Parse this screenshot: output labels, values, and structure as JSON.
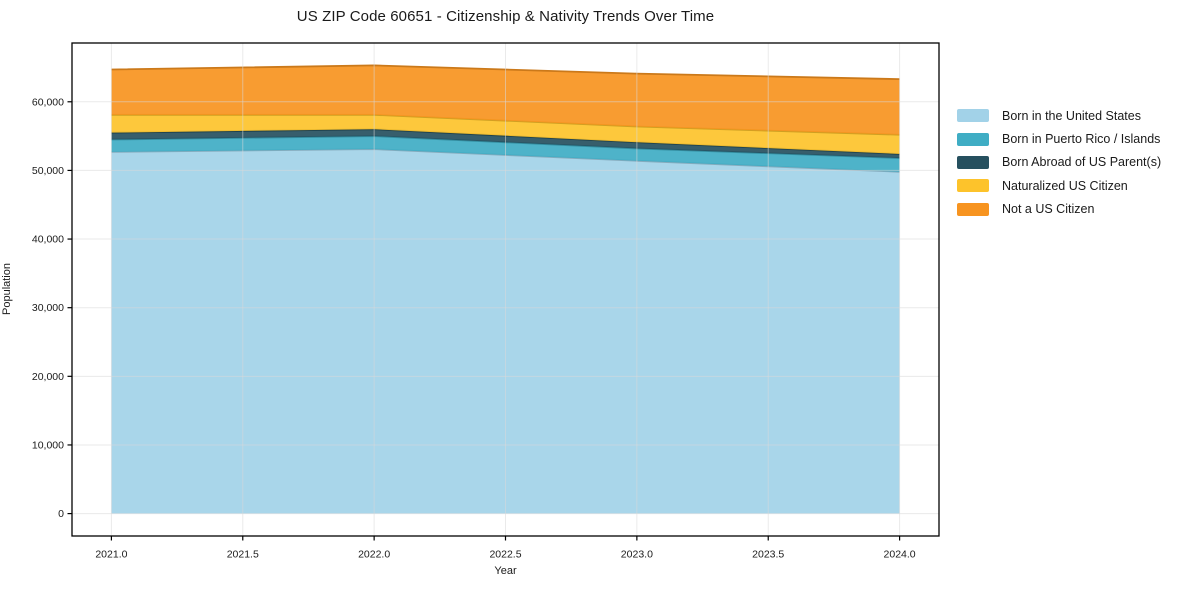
{
  "chart_data": {
    "type": "area",
    "stacked": true,
    "title": "US ZIP Code 60651 - Citizenship & Nativity Trends Over Time",
    "xlabel": "Year",
    "ylabel": "Population",
    "x": [
      2021,
      2022,
      2023,
      2024
    ],
    "series": [
      {
        "name": "Born in the United States",
        "color": "#a2d2e8",
        "values": [
          52700,
          53100,
          51400,
          49800
        ]
      },
      {
        "name": "Born in Puerto Rico / Islands",
        "color": "#3fadc4",
        "values": [
          1800,
          1900,
          1800,
          2000
        ]
      },
      {
        "name": "Born Abroad of US Parent(s)",
        "color": "#26505f",
        "values": [
          1000,
          1000,
          900,
          600
        ]
      },
      {
        "name": "Naturalized US Citizen",
        "color": "#fdc32b",
        "values": [
          2600,
          2100,
          2300,
          2800
        ]
      },
      {
        "name": "Not a US Citizen",
        "color": "#f79420",
        "values": [
          6600,
          7200,
          7700,
          8100
        ]
      }
    ],
    "totals": [
      64700,
      65300,
      64100,
      63300
    ],
    "x_ticks": [
      {
        "v": 2021.0,
        "label": "2021.0"
      },
      {
        "v": 2021.5,
        "label": "2021.5"
      },
      {
        "v": 2022.0,
        "label": "2022.0"
      },
      {
        "v": 2022.5,
        "label": "2022.5"
      },
      {
        "v": 2023.0,
        "label": "2023.0"
      },
      {
        "v": 2023.5,
        "label": "2023.5"
      },
      {
        "v": 2024.0,
        "label": "2024.0"
      }
    ],
    "y_ticks": [
      {
        "v": 0,
        "label": "0"
      },
      {
        "v": 10000,
        "label": "10,000"
      },
      {
        "v": 20000,
        "label": "20,000"
      },
      {
        "v": 30000,
        "label": "30,000"
      },
      {
        "v": 40000,
        "label": "40,000"
      },
      {
        "v": 50000,
        "label": "50,000"
      },
      {
        "v": 60000,
        "label": "60,000"
      }
    ],
    "xlim": [
      2020.85,
      2024.15
    ],
    "ylim": [
      -3265,
      68565
    ],
    "grid": true,
    "legend_position": "right-outside"
  },
  "colors": {
    "background": "#ffffff",
    "spine": "#000000",
    "grid": "#d9d9d9",
    "text": "#1a1a1a"
  }
}
